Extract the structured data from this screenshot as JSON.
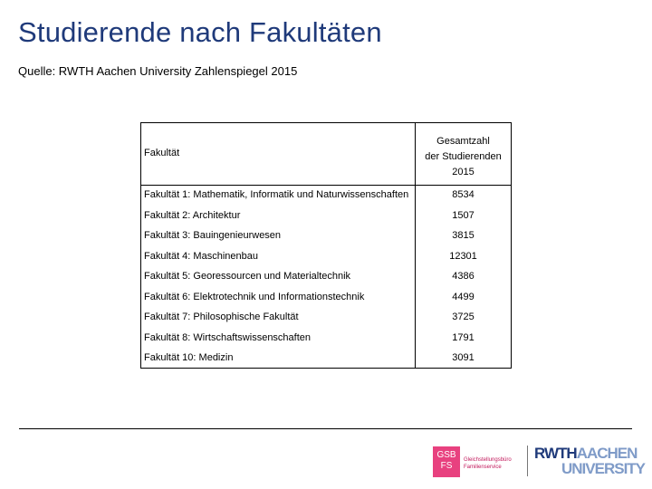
{
  "title": "Studierende nach Fakultäten",
  "source": "Quelle: RWTH Aachen University Zahlenspiegel 2015",
  "table": {
    "header_faculty": "Fakultät",
    "header_total": "Gesamtzahl\nder Studierenden\n2015",
    "rows": [
      {
        "name": "Fakultät 1: Mathematik, Informatik und Naturwissenschaften",
        "value": "8534"
      },
      {
        "name": "Fakultät 2: Architektur",
        "value": "1507"
      },
      {
        "name": "Fakultät 3: Bauingenieurwesen",
        "value": "3815"
      },
      {
        "name": "Fakultät 4: Maschinenbau",
        "value": "12301"
      },
      {
        "name": "Fakultät 5: Georessourcen und Materialtechnik",
        "value": "4386"
      },
      {
        "name": "Fakultät 6: Elektrotechnik und Informationstechnik",
        "value": "4499"
      },
      {
        "name": "Fakultät 7: Philosophische Fakultät",
        "value": "3725"
      },
      {
        "name": "Fakultät 8: Wirtschaftswissenschaften",
        "value": "1791"
      },
      {
        "name": "Fakultät 10: Medizin",
        "value": "3091"
      }
    ]
  },
  "logos": {
    "gsb_box": "GSB\nFS",
    "gsb_text": "Gleichstellungsbüro\nFamilienservice",
    "rwth_part1": "RWTH",
    "rwth_part2": "AACHEN",
    "rwth_line2": "UNIVERSITY",
    "colors": {
      "rwth_dark": "#1f3a7a",
      "rwth_light": "#7f9bc8",
      "gsb_pink": "#e8417f"
    }
  }
}
